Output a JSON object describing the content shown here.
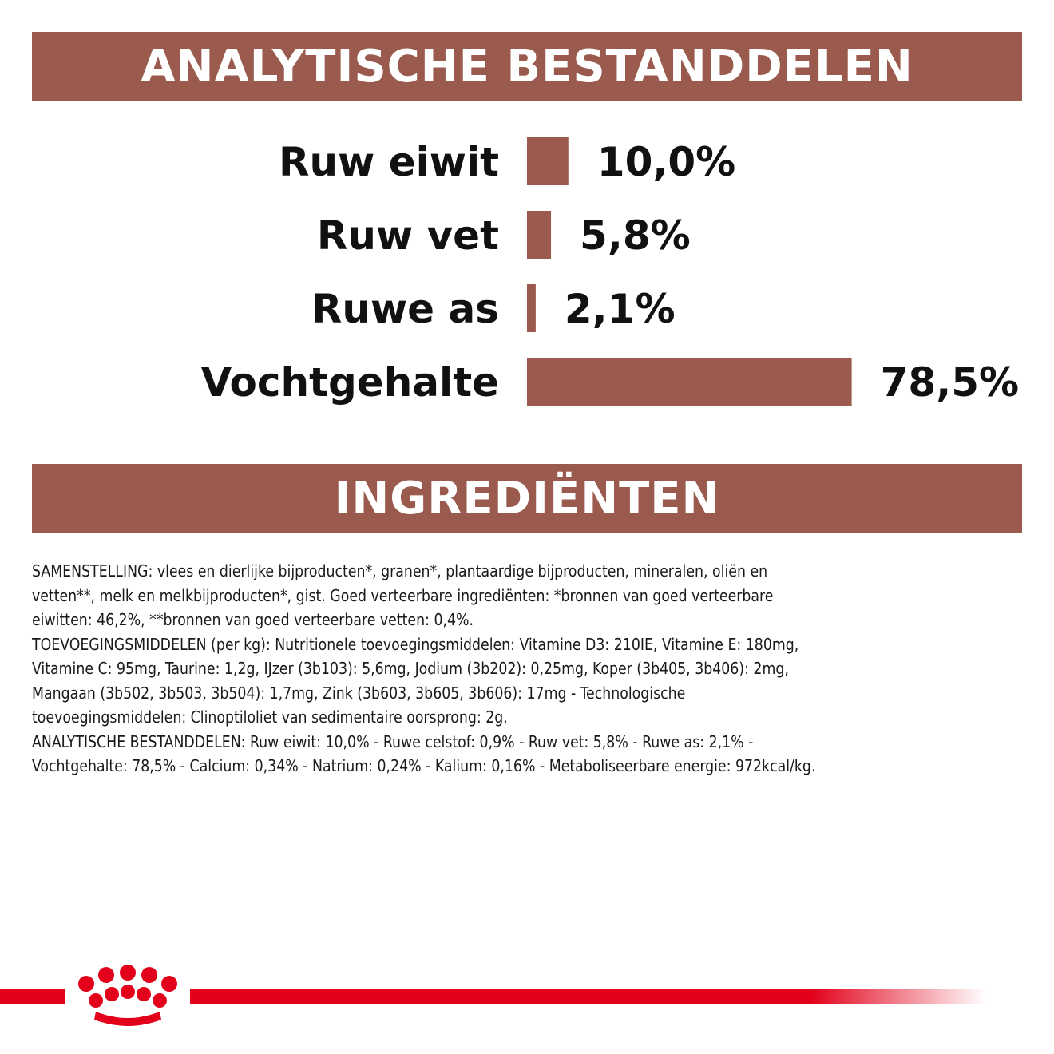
{
  "colors": {
    "accent": "#9a5b4e",
    "brand_red": "#e2001a",
    "text": "#111111"
  },
  "headings": {
    "analytical": "ANALYTISCHE BESTANDDELEN",
    "ingredients": "INGREDIËNTEN"
  },
  "chart_data": {
    "type": "bar",
    "orientation": "horizontal",
    "categories": [
      "Ruw eiwit",
      "Ruw vet",
      "Ruwe as",
      "Vochtgehalte"
    ],
    "values": [
      10.0,
      5.8,
      2.1,
      78.5
    ],
    "labels": [
      "10,0%",
      "5,8%",
      "2,1%",
      "78,5%"
    ],
    "unit": "%",
    "grid": false
  },
  "composition": {
    "lines": [
      "SAMENSTELLING: vlees en dierlijke bijproducten*, granen*, plantaardige bijproducten, mineralen, oliën en",
      "vetten**, melk en melkbijproducten*, gist. Goed verteerbare ingrediënten: *bronnen van goed verteerbare",
      "eiwitten: 46,2%, **bronnen van goed verteerbare vetten: 0,4%.",
      "TOEVOEGINGSMIDDELEN (per kg): Nutritionele toevoegingsmiddelen: Vitamine D3: 210IE, Vitamine E: 180mg,",
      "Vitamine C: 95mg, Taurine: 1,2g, IJzer (3b103): 5,6mg, Jodium (3b202): 0,25mg, Koper (3b405, 3b406): 2mg,",
      "Mangaan (3b502, 3b503, 3b504): 1,7mg, Zink (3b603, 3b605, 3b606): 17mg - Technologische",
      "toevoegingsmiddelen: Clinoptiloliet van sedimentaire oorsprong: 2g.",
      "ANALYTISCHE BESTANDDELEN: Ruw eiwit: 10,0% - Ruwe celstof: 0,9% - Ruw vet: 5,8% - Ruwe as: 2,1% -",
      "Vochtgehalte: 78,5% - Calcium: 0,34% - Natrium: 0,24% - Kalium: 0,16% - Metaboliseerbare energie: 972kcal/kg."
    ]
  },
  "logo": {
    "icon": "crown-icon"
  }
}
